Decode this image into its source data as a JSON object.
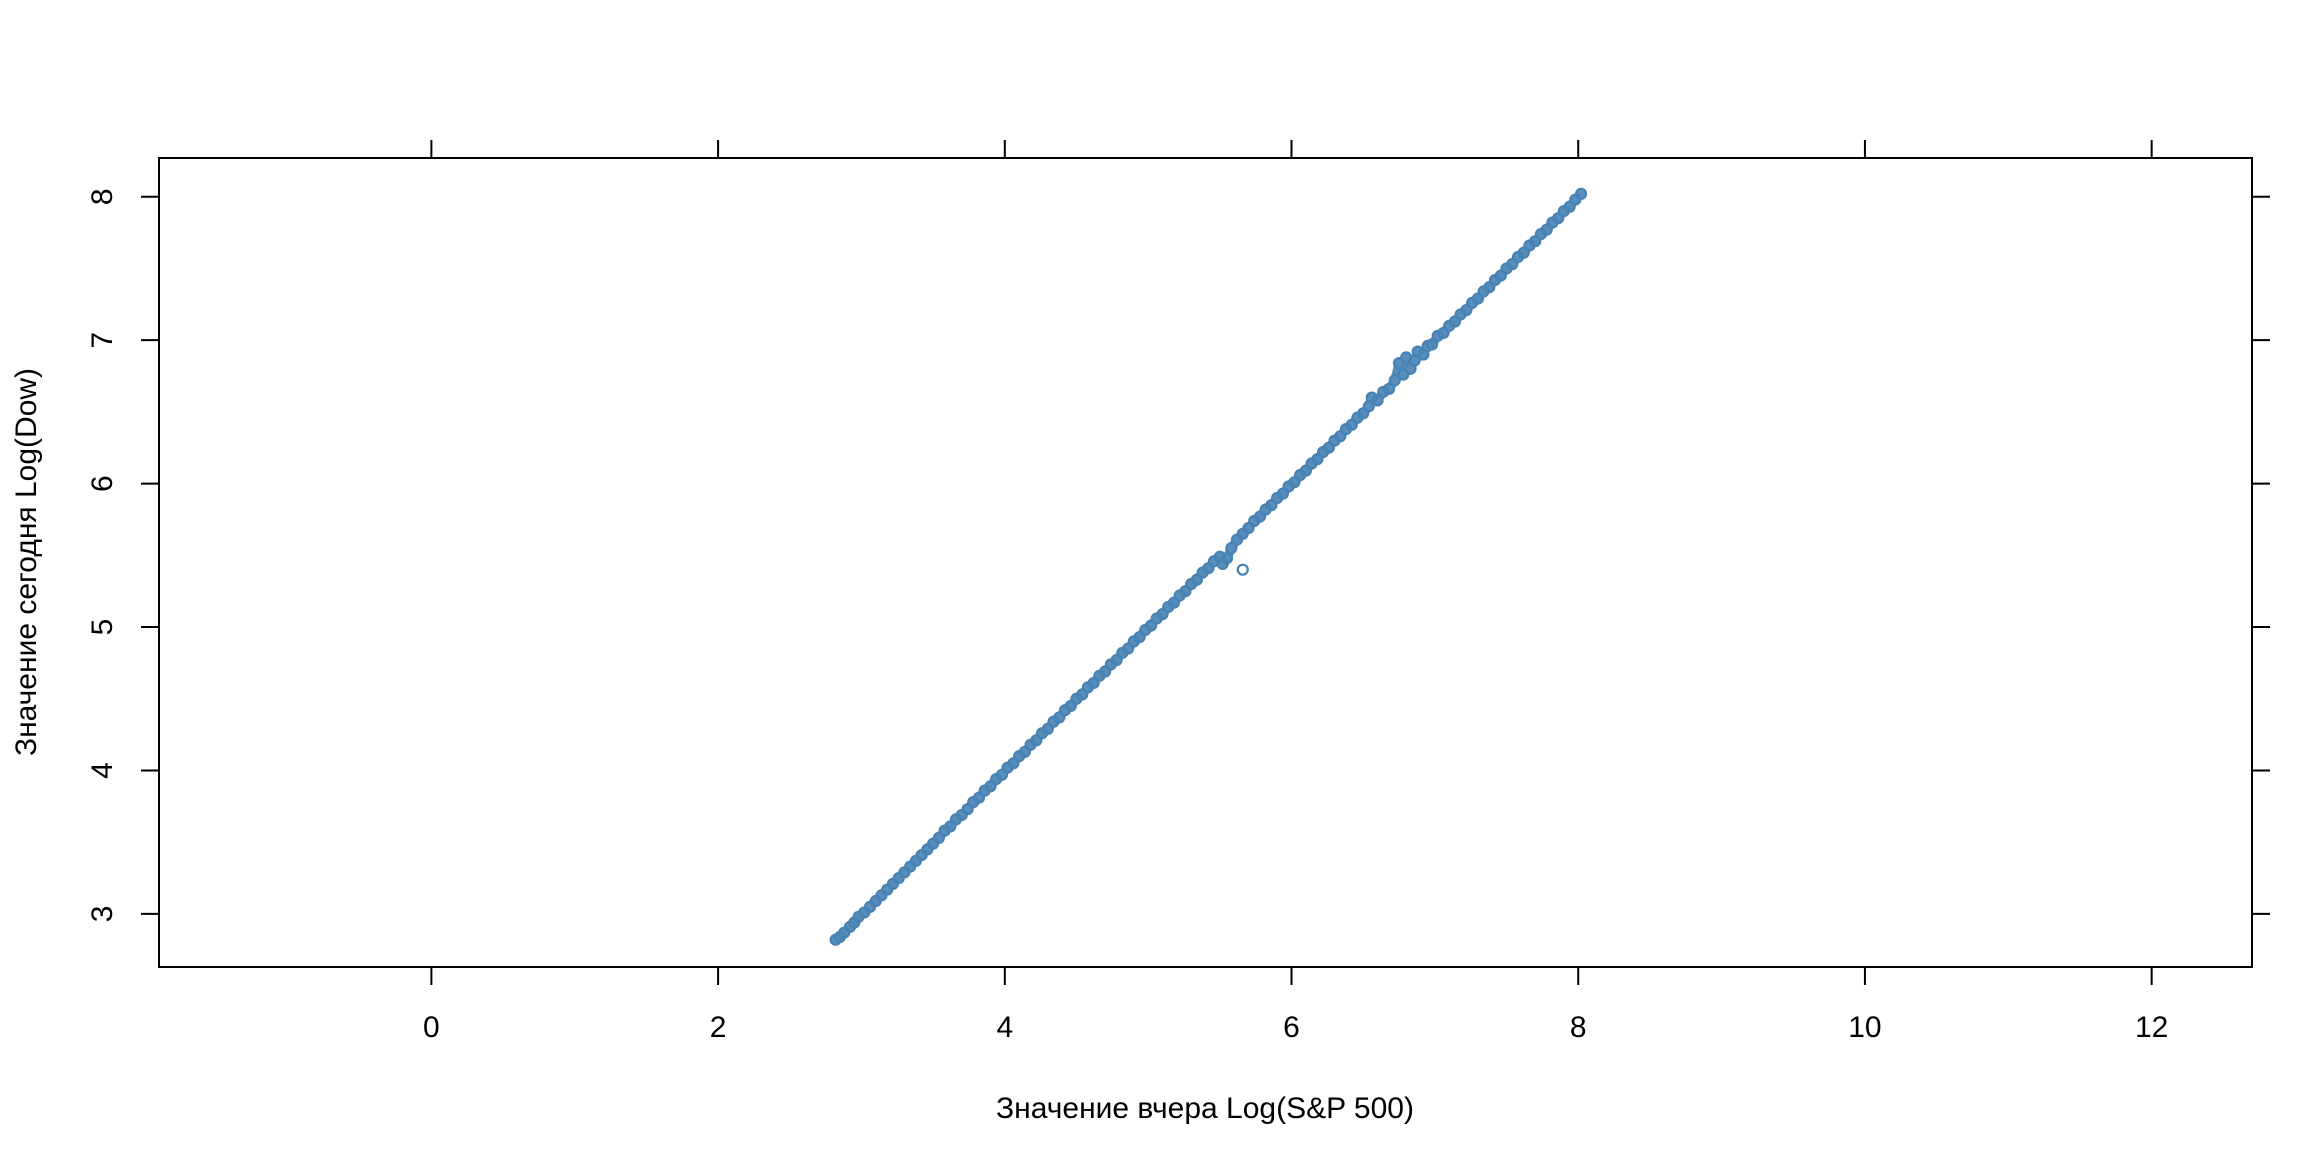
{
  "chart_data": {
    "type": "scatter",
    "title": "",
    "xlabel": "Значение вчера Log(S&P 500)",
    "ylabel": "Значение сегодня Log(Dow)",
    "xlim": [
      -1.9,
      12.7
    ],
    "ylim": [
      2.63,
      8.27
    ],
    "x_ticks": [
      "0",
      "2",
      "4",
      "6",
      "8",
      "10",
      "12"
    ],
    "y_ticks": [
      "3",
      "4",
      "5",
      "6",
      "7",
      "8"
    ],
    "grid": false,
    "legend": "none",
    "marker": "open-circle",
    "point_color": "#4682B4",
    "series": [
      {
        "name": "",
        "points": [
          [
            2.82,
            2.82
          ],
          [
            2.85,
            2.84
          ],
          [
            2.88,
            2.87
          ],
          [
            2.92,
            2.91
          ],
          [
            2.95,
            2.94
          ],
          [
            2.98,
            2.98
          ],
          [
            3.02,
            3.01
          ],
          [
            3.06,
            3.05
          ],
          [
            3.1,
            3.09
          ],
          [
            3.14,
            3.13
          ],
          [
            3.18,
            3.17
          ],
          [
            3.22,
            3.21
          ],
          [
            3.26,
            3.25
          ],
          [
            3.3,
            3.29
          ],
          [
            3.34,
            3.33
          ],
          [
            3.38,
            3.37
          ],
          [
            3.42,
            3.41
          ],
          [
            3.46,
            3.45
          ],
          [
            3.5,
            3.49
          ],
          [
            3.54,
            3.53
          ],
          [
            3.58,
            3.58
          ],
          [
            3.62,
            3.61
          ],
          [
            3.66,
            3.66
          ],
          [
            3.7,
            3.69
          ],
          [
            3.74,
            3.73
          ],
          [
            3.78,
            3.78
          ],
          [
            3.82,
            3.81
          ],
          [
            3.86,
            3.86
          ],
          [
            3.9,
            3.89
          ],
          [
            3.94,
            3.94
          ],
          [
            3.98,
            3.97
          ],
          [
            4.02,
            4.02
          ],
          [
            4.06,
            4.05
          ],
          [
            4.1,
            4.1
          ],
          [
            4.14,
            4.13
          ],
          [
            4.18,
            4.18
          ],
          [
            4.22,
            4.21
          ],
          [
            4.26,
            4.26
          ],
          [
            4.3,
            4.29
          ],
          [
            4.34,
            4.34
          ],
          [
            4.38,
            4.37
          ],
          [
            4.42,
            4.42
          ],
          [
            4.46,
            4.45
          ],
          [
            4.5,
            4.5
          ],
          [
            4.54,
            4.53
          ],
          [
            4.58,
            4.58
          ],
          [
            4.62,
            4.61
          ],
          [
            4.66,
            4.66
          ],
          [
            4.7,
            4.69
          ],
          [
            4.74,
            4.74
          ],
          [
            4.78,
            4.77
          ],
          [
            4.82,
            4.82
          ],
          [
            4.86,
            4.85
          ],
          [
            4.9,
            4.9
          ],
          [
            4.94,
            4.93
          ],
          [
            4.98,
            4.98
          ],
          [
            5.02,
            5.01
          ],
          [
            5.06,
            5.06
          ],
          [
            5.1,
            5.09
          ],
          [
            5.14,
            5.14
          ],
          [
            5.18,
            5.17
          ],
          [
            5.22,
            5.22
          ],
          [
            5.26,
            5.25
          ],
          [
            5.3,
            5.3
          ],
          [
            5.34,
            5.33
          ],
          [
            5.38,
            5.38
          ],
          [
            5.42,
            5.41
          ],
          [
            5.46,
            5.46
          ],
          [
            5.5,
            5.49
          ],
          [
            5.52,
            5.44
          ],
          [
            5.55,
            5.48
          ],
          [
            5.58,
            5.55
          ],
          [
            5.62,
            5.61
          ],
          [
            5.66,
            5.4
          ],
          [
            5.66,
            5.65
          ],
          [
            5.7,
            5.69
          ],
          [
            5.74,
            5.74
          ],
          [
            5.78,
            5.77
          ],
          [
            5.82,
            5.82
          ],
          [
            5.86,
            5.85
          ],
          [
            5.9,
            5.9
          ],
          [
            5.94,
            5.93
          ],
          [
            5.98,
            5.98
          ],
          [
            6.02,
            6.01
          ],
          [
            6.06,
            6.06
          ],
          [
            6.1,
            6.09
          ],
          [
            6.14,
            6.14
          ],
          [
            6.18,
            6.17
          ],
          [
            6.22,
            6.22
          ],
          [
            6.26,
            6.25
          ],
          [
            6.3,
            6.3
          ],
          [
            6.34,
            6.33
          ],
          [
            6.38,
            6.38
          ],
          [
            6.42,
            6.41
          ],
          [
            6.46,
            6.46
          ],
          [
            6.5,
            6.49
          ],
          [
            6.54,
            6.54
          ],
          [
            6.56,
            6.6
          ],
          [
            6.6,
            6.58
          ],
          [
            6.64,
            6.64
          ],
          [
            6.68,
            6.66
          ],
          [
            6.72,
            6.72
          ],
          [
            6.75,
            6.84
          ],
          [
            6.78,
            6.76
          ],
          [
            6.8,
            6.88
          ],
          [
            6.83,
            6.8
          ],
          [
            6.86,
            6.86
          ],
          [
            6.88,
            6.92
          ],
          [
            6.92,
            6.9
          ],
          [
            6.95,
            6.96
          ],
          [
            6.98,
            6.97
          ],
          [
            7.02,
            7.03
          ],
          [
            7.06,
            7.05
          ],
          [
            7.1,
            7.1
          ],
          [
            7.14,
            7.13
          ],
          [
            7.18,
            7.18
          ],
          [
            7.22,
            7.21
          ],
          [
            7.26,
            7.26
          ],
          [
            7.3,
            7.29
          ],
          [
            7.34,
            7.34
          ],
          [
            7.38,
            7.37
          ],
          [
            7.42,
            7.42
          ],
          [
            7.46,
            7.45
          ],
          [
            7.5,
            7.5
          ],
          [
            7.54,
            7.53
          ],
          [
            7.58,
            7.58
          ],
          [
            7.62,
            7.61
          ],
          [
            7.66,
            7.66
          ],
          [
            7.7,
            7.69
          ],
          [
            7.74,
            7.74
          ],
          [
            7.78,
            7.77
          ],
          [
            7.82,
            7.82
          ],
          [
            7.86,
            7.85
          ],
          [
            7.9,
            7.9
          ],
          [
            7.94,
            7.93
          ],
          [
            7.98,
            7.98
          ],
          [
            8.02,
            8.02
          ]
        ]
      }
    ]
  }
}
